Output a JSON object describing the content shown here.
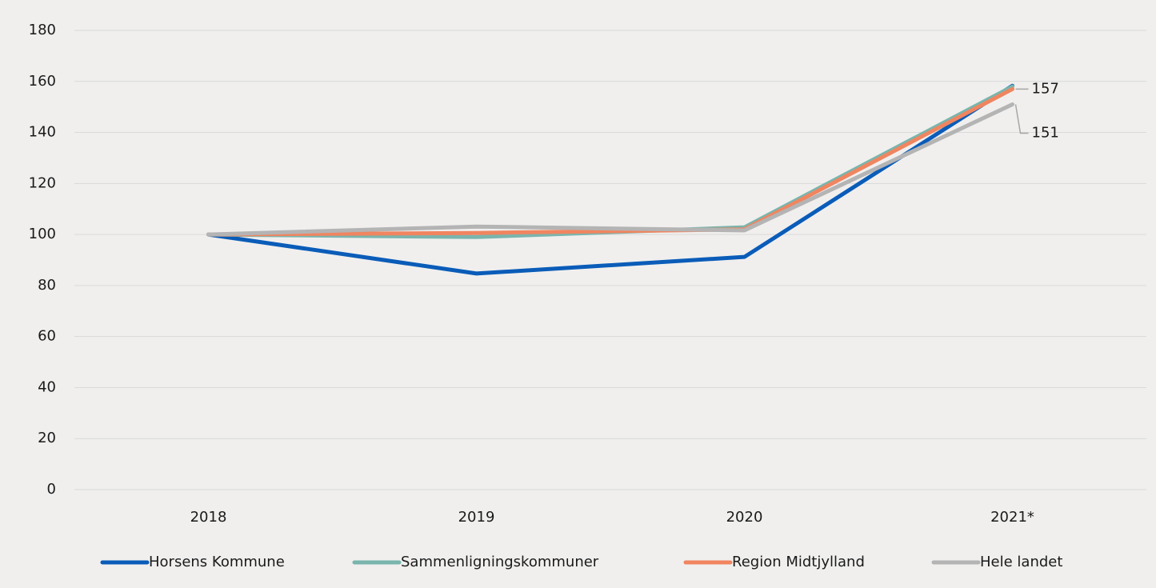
{
  "chart_data": {
    "type": "line",
    "categories": [
      "2018",
      "2019",
      "2020",
      "2021*"
    ],
    "series": [
      {
        "name": "Horsens Kommune",
        "color": "#0a5cb8",
        "values": [
          100,
          84.7,
          91.2,
          158.3
        ]
      },
      {
        "name": "Sammenligningskommuner",
        "color": "#7ab5ad",
        "values": [
          100,
          99,
          102.8,
          158
        ]
      },
      {
        "name": "Region Midtjylland",
        "color": "#f08560",
        "values": [
          100,
          100.6,
          102,
          157
        ],
        "label_last": true
      },
      {
        "name": "Hele landet",
        "color": "#b4b4b4",
        "values": [
          100,
          103.1,
          101.6,
          151
        ],
        "label_last": true
      }
    ],
    "ylim": [
      0,
      180
    ],
    "yticks": [
      0,
      20,
      40,
      60,
      80,
      100,
      120,
      140,
      160,
      180
    ],
    "grid": true,
    "legend": "bottom"
  }
}
